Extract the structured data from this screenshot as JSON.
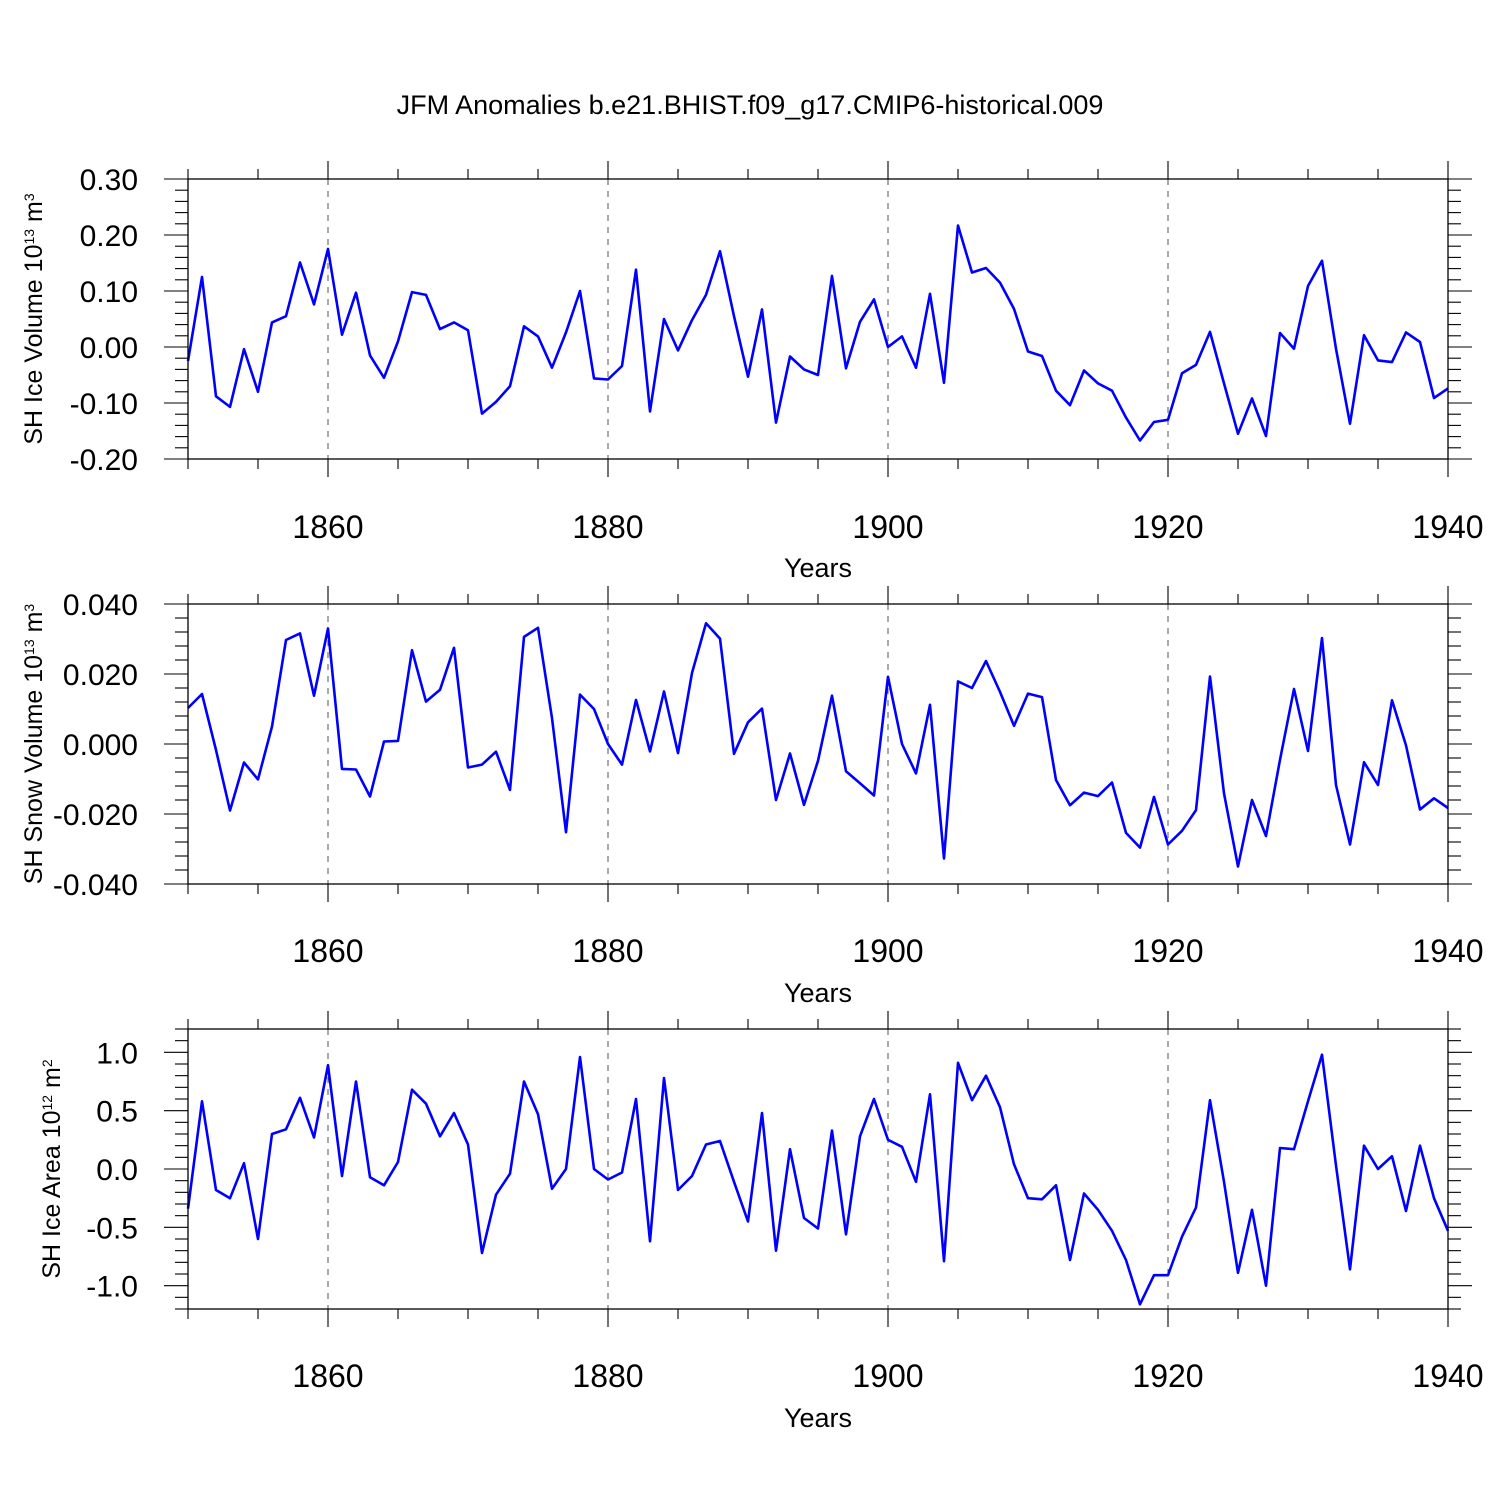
{
  "title": "JFM Anomalies b.e21.BHIST.f09_g17.CMIP6-historical.009",
  "colors": {
    "series": "#0000ff",
    "axis": "#000000",
    "grid": "#555555"
  },
  "chart_data": [
    {
      "type": "line",
      "ylabel_main": "SH Ice Volume 10",
      "ylabel_sup1": "13",
      "ylabel_mid": " m",
      "ylabel_sup2": "3",
      "xlabel": "Years",
      "xlim": [
        1850,
        1940
      ],
      "ylim": [
        -0.2,
        0.3
      ],
      "xticks": [
        1860,
        1880,
        1900,
        1920,
        1940
      ],
      "xtick_labels": [
        "1860",
        "1880",
        "1900",
        "1920",
        "1940"
      ],
      "yticks": [
        -0.2,
        -0.1,
        0.0,
        0.1,
        0.2,
        0.3
      ],
      "ytick_labels": [
        "-0.20",
        "-0.10",
        "0.00",
        "0.10",
        "0.20",
        "0.30"
      ],
      "x_start": 1850,
      "values": [
        -0.025,
        0.125,
        -0.088,
        -0.107,
        -0.004,
        -0.08,
        0.044,
        0.055,
        0.151,
        0.076,
        0.175,
        0.022,
        0.097,
        -0.015,
        -0.055,
        0.01,
        0.098,
        0.093,
        0.032,
        0.044,
        0.03,
        -0.119,
        -0.098,
        -0.07,
        0.037,
        0.019,
        -0.037,
        0.026,
        0.1,
        -0.056,
        -0.058,
        -0.034,
        0.138,
        -0.115,
        0.05,
        -0.006,
        0.048,
        0.093,
        0.171,
        0.055,
        -0.053,
        0.067,
        -0.135,
        -0.017,
        -0.04,
        -0.05,
        0.127,
        -0.038,
        0.045,
        0.085,
        0.0,
        0.019,
        -0.037,
        0.095,
        -0.064,
        0.217,
        0.133,
        0.141,
        0.115,
        0.068,
        -0.008,
        -0.016,
        -0.078,
        -0.104,
        -0.042,
        -0.065,
        -0.078,
        -0.126,
        -0.167,
        -0.134,
        -0.13,
        -0.047,
        -0.032,
        0.027,
        -0.065,
        -0.155,
        -0.092,
        -0.159,
        0.025,
        -0.003,
        0.109,
        0.154,
        -0.003,
        -0.137,
        0.021,
        -0.024,
        -0.027,
        0.026,
        0.009,
        -0.091,
        -0.074
      ]
    },
    {
      "type": "line",
      "ylabel_main": "SH Snow Volume 10",
      "ylabel_sup1": "13",
      "ylabel_mid": " m",
      "ylabel_sup2": "3",
      "xlabel": "Years",
      "xlim": [
        1850,
        1940
      ],
      "ylim": [
        -0.04,
        0.04
      ],
      "xticks": [
        1860,
        1880,
        1900,
        1920,
        1940
      ],
      "xtick_labels": [
        "1860",
        "1880",
        "1900",
        "1920",
        "1940"
      ],
      "yticks": [
        -0.04,
        -0.02,
        0.0,
        0.02,
        0.04
      ],
      "ytick_labels": [
        "-0.040",
        "-0.020",
        "0.000",
        "0.020",
        "0.040"
      ],
      "x_start": 1850,
      "values": [
        0.0103,
        0.0143,
        -0.0017,
        -0.019,
        -0.0053,
        -0.0101,
        0.005,
        0.0297,
        0.0316,
        0.0138,
        0.033,
        -0.0071,
        -0.0073,
        -0.015,
        0.0007,
        0.0009,
        0.0268,
        0.0121,
        0.0155,
        0.0275,
        -0.0067,
        -0.0059,
        -0.0022,
        -0.0131,
        0.0306,
        0.0332,
        0.0074,
        -0.0252,
        0.0141,
        0.01,
        0.0,
        -0.0059,
        0.0126,
        -0.0021,
        0.015,
        -0.0026,
        0.0203,
        0.0345,
        0.0301,
        -0.0028,
        0.0062,
        0.0101,
        -0.016,
        -0.0027,
        -0.0174,
        -0.0048,
        0.0138,
        -0.0078,
        -0.0112,
        -0.0147,
        0.0192,
        0.0,
        -0.0084,
        0.0112,
        -0.0327,
        0.0179,
        0.016,
        0.0237,
        0.0149,
        0.0052,
        0.0144,
        0.0134,
        -0.0103,
        -0.0175,
        -0.0139,
        -0.0149,
        -0.011,
        -0.0254,
        -0.0296,
        -0.0151,
        -0.0287,
        -0.0248,
        -0.0189,
        0.0193,
        -0.0141,
        -0.035,
        -0.016,
        -0.0263,
        -0.0045,
        0.0157,
        -0.002,
        0.0303,
        -0.0117,
        -0.0287,
        -0.0052,
        -0.0117,
        0.0125,
        -0.0004,
        -0.0187,
        -0.0155,
        -0.0183
      ]
    },
    {
      "type": "line",
      "ylabel_main": "SH Ice Area 10",
      "ylabel_sup1": "12",
      "ylabel_mid": " m",
      "ylabel_sup2": "2",
      "xlabel": "Years",
      "xlim": [
        1850,
        1940
      ],
      "ylim": [
        -1.2,
        1.2
      ],
      "xticks": [
        1860,
        1880,
        1900,
        1920,
        1940
      ],
      "xtick_labels": [
        "1860",
        "1880",
        "1900",
        "1920",
        "1940"
      ],
      "yticks": [
        -1.0,
        -0.5,
        0.0,
        0.5,
        1.0
      ],
      "ytick_labels": [
        "-1.0",
        "-0.5",
        "0.0",
        "0.5",
        "1.0"
      ],
      "x_start": 1850,
      "values": [
        -0.34,
        0.58,
        -0.18,
        -0.25,
        0.05,
        -0.6,
        0.3,
        0.34,
        0.61,
        0.27,
        0.89,
        -0.06,
        0.75,
        -0.07,
        -0.14,
        0.06,
        0.68,
        0.56,
        0.28,
        0.48,
        0.21,
        -0.72,
        -0.22,
        -0.04,
        0.75,
        0.47,
        -0.17,
        0.0,
        0.96,
        0.0,
        -0.09,
        -0.03,
        0.6,
        -0.62,
        0.78,
        -0.18,
        -0.06,
        0.21,
        0.24,
        -0.11,
        -0.45,
        0.48,
        -0.7,
        0.17,
        -0.42,
        -0.51,
        0.33,
        -0.56,
        0.28,
        0.6,
        0.25,
        0.19,
        -0.11,
        0.64,
        -0.79,
        0.91,
        0.59,
        0.8,
        0.53,
        0.04,
        -0.25,
        -0.26,
        -0.14,
        -0.78,
        -0.21,
        -0.35,
        -0.53,
        -0.78,
        -1.16,
        -0.91,
        -0.91,
        -0.58,
        -0.33,
        0.59,
        -0.11,
        -0.89,
        -0.35,
        -1.0,
        0.18,
        0.17,
        0.58,
        0.98,
        0.03,
        -0.86,
        0.2,
        0.0,
        0.11,
        -0.36,
        0.2,
        -0.25,
        -0.53
      ]
    }
  ]
}
